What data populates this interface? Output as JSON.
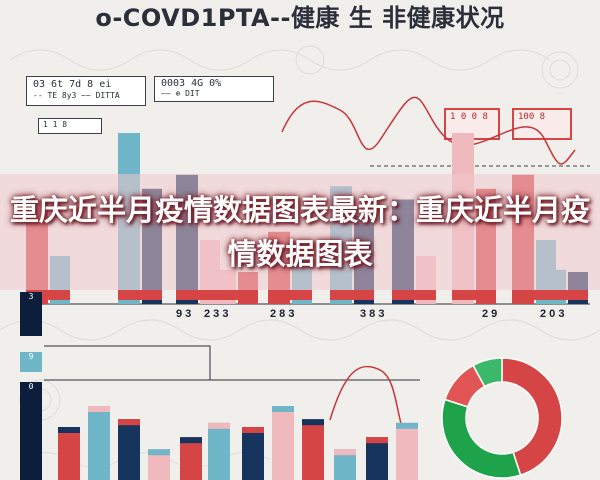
{
  "title": "o-COVD1PTA--健康 生 非健康状况",
  "overlay_caption": "重庆近半月疫情数据图表最新：重庆近半月疫情数据图表",
  "legend_panel": {
    "line1": "03 6t 7d 8 ei",
    "line2": "-- TE 8y3 ~~ DITTA"
  },
  "mid_panel": {
    "line1": "0003 4G 0%",
    "line2": "—— ⊕ DIT"
  },
  "top_right_tags": [
    "1 0 0 8",
    "100 8"
  ],
  "small_tag": "1 1 8",
  "axis_labels": [
    "9 3",
    "2 3 3",
    "2 8 3",
    "3 8 3",
    "2 9",
    "2 0 3"
  ],
  "side_labels": [
    "3",
    "9",
    "0"
  ],
  "colors": {
    "red": "#d64545",
    "blue": "#17345e",
    "teal": "#6fb6c8",
    "green": "#1fa34a",
    "pink": "#f0b9bd"
  },
  "chart_data": [
    {
      "type": "bar",
      "title": "",
      "categories": [
        "9",
        "23",
        "28",
        "38",
        "29",
        "20"
      ],
      "series": [
        {
          "values": [
            55,
            72,
            68,
            20,
            38,
            55
          ]
        },
        {
          "values": [
            30,
            90,
            40,
            18,
            30,
            62
          ]
        }
      ]
    },
    {
      "type": "pie",
      "title": "",
      "values": [
        45,
        35,
        12,
        8
      ]
    }
  ]
}
